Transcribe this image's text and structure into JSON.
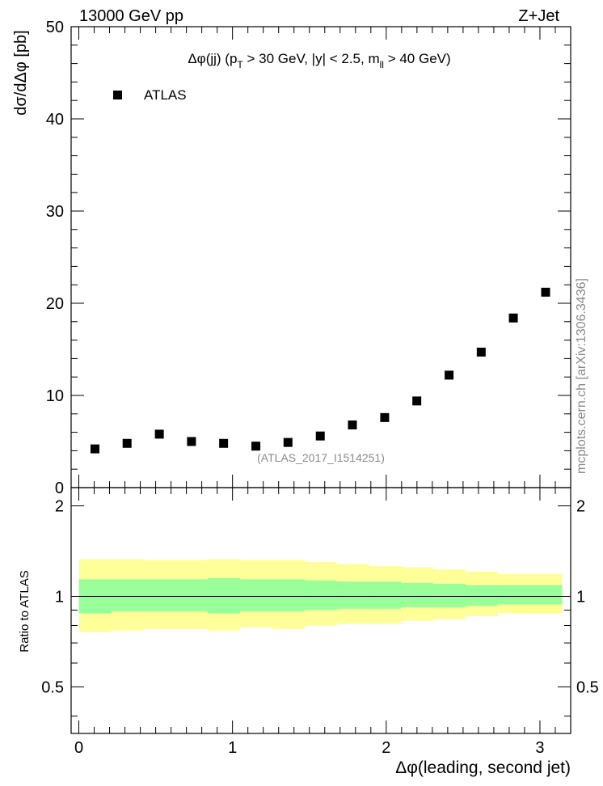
{
  "header": {
    "left": "13000 GeV pp",
    "right": "Z+Jet"
  },
  "side_text": "mcplots.cern.ch [arXiv:1306.3436]",
  "chart_data": [
    {
      "type": "scatter",
      "title": "Δφ(jj) (p_T > 30 GeV, |y| < 2.5, m_ll > 40 GeV)",
      "title_parts": {
        "a": "Δφ(jj) (p",
        "a_sub": "T",
        "b": " > 30 GeV, |y| < 2.5, m",
        "b_sub": "ll",
        "c": " > 40 GeV)"
      },
      "ylabel": "dσ/dΔφ [pb]",
      "xlim": [
        -0.05,
        3.2
      ],
      "ylim": [
        0,
        50
      ],
      "y_ticks": [
        0,
        10,
        20,
        30,
        40,
        50
      ],
      "legend": {
        "label": "ATLAS",
        "position": "top-left"
      },
      "watermark": "(ATLAS_2017_I1514251)",
      "series": [
        {
          "name": "ATLAS",
          "x": [
            0.105,
            0.314,
            0.524,
            0.733,
            0.942,
            1.152,
            1.361,
            1.571,
            1.78,
            1.99,
            2.199,
            2.409,
            2.618,
            2.827,
            3.037
          ],
          "values": [
            4.2,
            4.8,
            5.8,
            5.0,
            4.8,
            4.5,
            4.9,
            5.6,
            6.8,
            7.6,
            9.4,
            12.2,
            14.7,
            18.4,
            21.2
          ]
        }
      ]
    },
    {
      "type": "area",
      "ylabel": "Ratio to ATLAS",
      "xlabel": "Δφ(leading, second jet)",
      "xlim": [
        -0.05,
        3.2
      ],
      "ylim": [
        0.35,
        2.3
      ],
      "x_ticks": [
        0,
        1,
        2,
        3
      ],
      "y_ticks": [
        0.5,
        1,
        2
      ],
      "bin_edges": [
        0.0,
        0.209,
        0.419,
        0.628,
        0.838,
        1.047,
        1.257,
        1.466,
        1.676,
        1.885,
        2.094,
        2.304,
        2.513,
        2.723,
        2.932,
        3.142
      ],
      "bands": [
        {
          "name": "outer",
          "color": "#ffff99",
          "lower": [
            0.76,
            0.77,
            0.78,
            0.78,
            0.77,
            0.79,
            0.78,
            0.8,
            0.81,
            0.81,
            0.83,
            0.84,
            0.86,
            0.88,
            0.88
          ],
          "upper": [
            1.33,
            1.33,
            1.32,
            1.32,
            1.33,
            1.32,
            1.32,
            1.3,
            1.28,
            1.26,
            1.25,
            1.23,
            1.21,
            1.19,
            1.19
          ]
        },
        {
          "name": "inner",
          "color": "#99ff99",
          "lower": [
            0.88,
            0.89,
            0.89,
            0.89,
            0.88,
            0.89,
            0.89,
            0.9,
            0.91,
            0.91,
            0.92,
            0.92,
            0.93,
            0.94,
            0.94
          ],
          "upper": [
            1.14,
            1.14,
            1.14,
            1.14,
            1.15,
            1.14,
            1.14,
            1.13,
            1.12,
            1.12,
            1.11,
            1.1,
            1.09,
            1.09,
            1.09
          ]
        }
      ],
      "reference_line": 1
    }
  ]
}
